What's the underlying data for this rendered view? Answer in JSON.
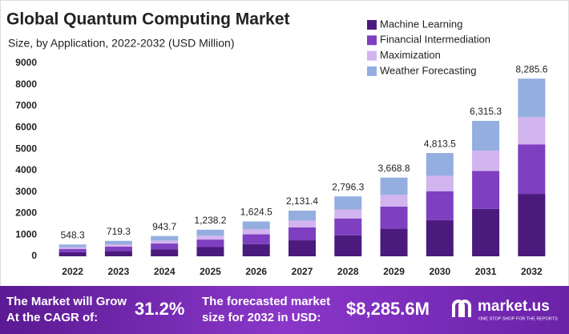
{
  "chart_data": {
    "type": "stacked_bar",
    "title": "Global Quantum Computing Market",
    "subtitle": "Size, by Application, 2022-2032 (USD Million)",
    "categories": [
      "2022",
      "2023",
      "2024",
      "2025",
      "2026",
      "2027",
      "2028",
      "2029",
      "2030",
      "2031",
      "2032"
    ],
    "series": [
      {
        "name": "Machine Learning",
        "color": "#4a1a7c",
        "values": [
          190,
          250,
          330,
          430,
          570,
          745,
          980,
          1285,
          1685,
          2210,
          2910
        ]
      },
      {
        "name": "Financial Intermediation",
        "color": "#7e3fc0",
        "values": [
          155,
          200,
          265,
          350,
          455,
          600,
          785,
          1030,
          1350,
          1770,
          2310
        ]
      },
      {
        "name": "Maximization",
        "color": "#d2b4ee",
        "values": [
          80,
          110,
          140,
          185,
          245,
          320,
          420,
          550,
          720,
          945,
          1270
        ]
      },
      {
        "name": "Weather Forecasting",
        "color": "#94aee0",
        "values": [
          125,
          160,
          210,
          275,
          355,
          465,
          610,
          805,
          1060,
          1390,
          1795
        ]
      }
    ],
    "totals": {
      "values": [
        548.3,
        719.3,
        943.7,
        1238.2,
        1624.5,
        2131.4,
        2796.3,
        3668.8,
        4813.5,
        6315.3,
        8285.6
      ],
      "value_labels": [
        "548.3",
        "719.3",
        "943.7",
        "1,238.2",
        "1,624.5",
        "2,131.4",
        "2,796.3",
        "3,668.8",
        "4,813.5",
        "6,315.3",
        "8,285.6"
      ]
    },
    "ylim": [
      0,
      9000
    ],
    "yticks": [
      0,
      1000,
      2000,
      3000,
      4000,
      5000,
      6000,
      7000,
      8000,
      9000
    ],
    "grid": false
  },
  "footer": {
    "cagr_text": [
      "The Market will Grow",
      "At the CAGR of:"
    ],
    "cagr": "31.2%",
    "forecast_text": [
      "The forecasted market",
      "size for 2032 in USD:"
    ],
    "forecast": "$8,285.6M",
    "brand": "market.us",
    "tagline": "ONE STOP SHOP FOR THE REPORTS"
  }
}
